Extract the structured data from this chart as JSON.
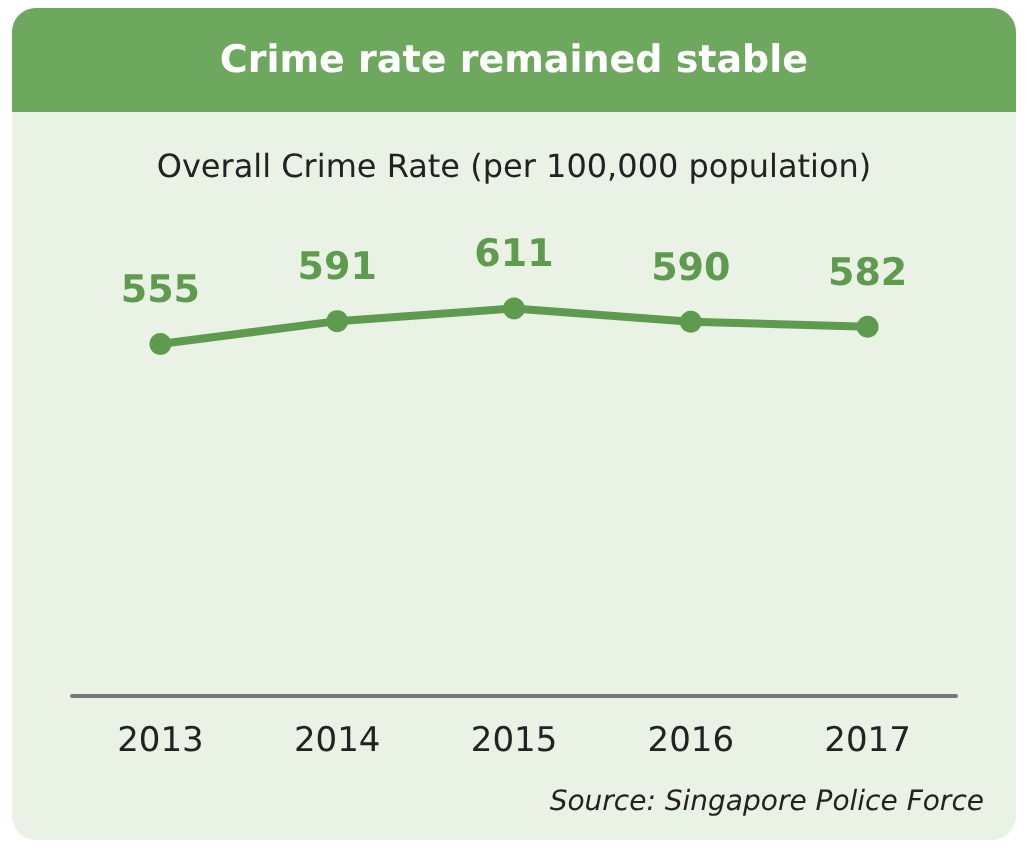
{
  "chart_data": {
    "type": "line",
    "title": "Crime rate remained stable",
    "subtitle": "Overall Crime Rate (per 100,000 population)",
    "categories": [
      "2013",
      "2014",
      "2015",
      "2016",
      "2017"
    ],
    "series": [
      {
        "color": "#5e9b4f",
        "values": [
          555,
          591,
          611,
          590,
          582
        ]
      }
    ],
    "data_labels": true,
    "marker": "circle",
    "line_style": "solid",
    "grid": false,
    "tick_labels": "x",
    "annotations": [
      "Source: Singapore Police Force"
    ]
  }
}
